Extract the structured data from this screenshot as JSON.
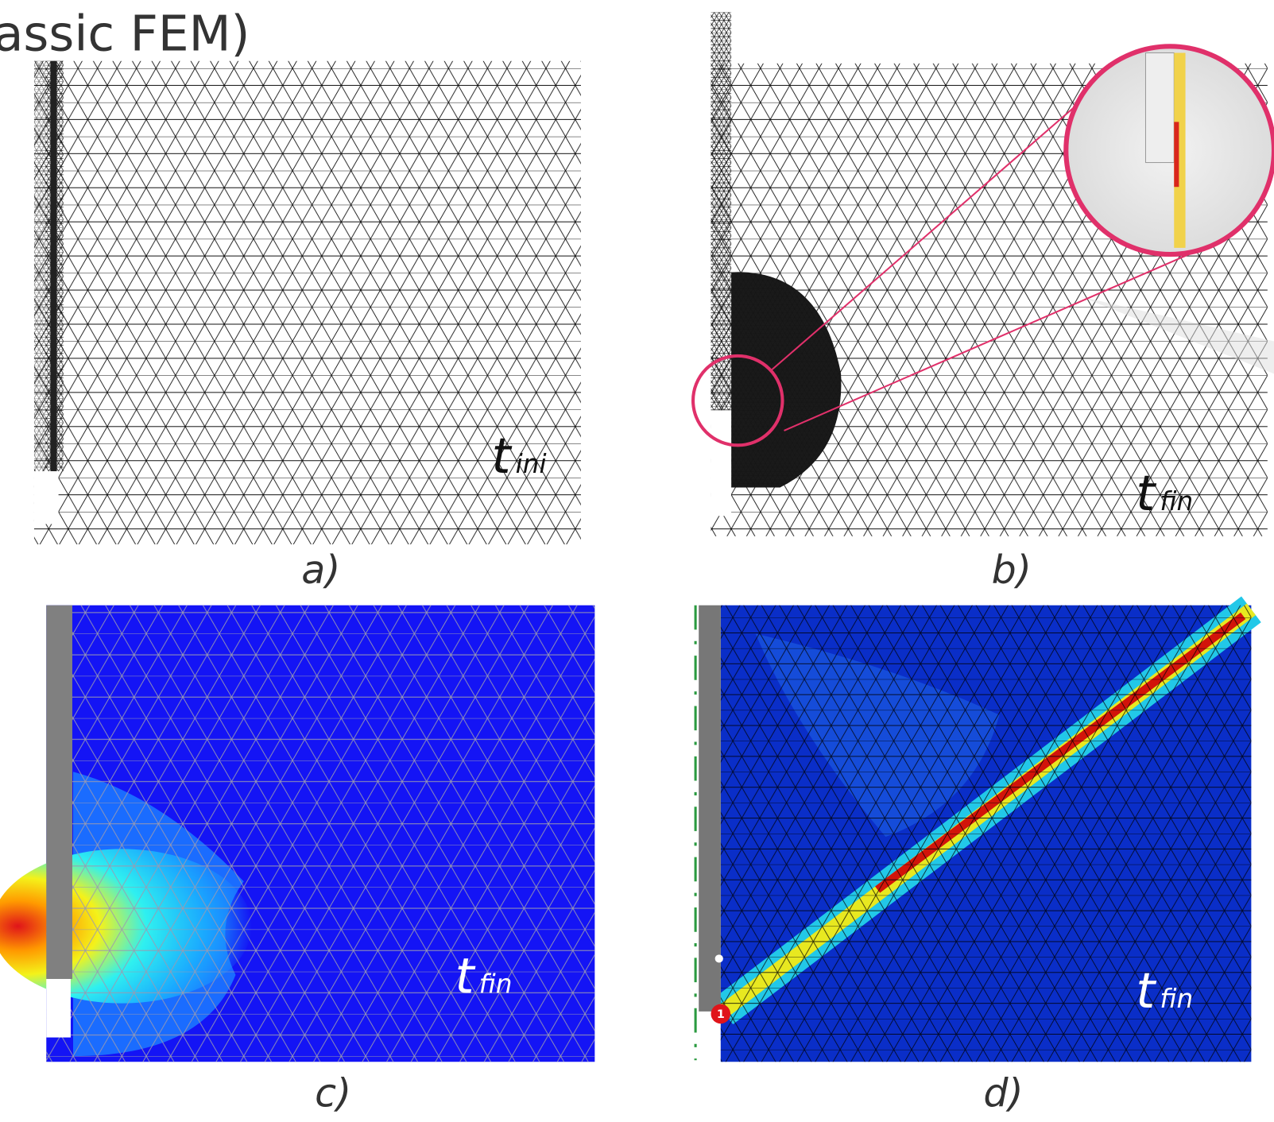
{
  "title": "assic FEM)",
  "panels": [
    {
      "label": "a)",
      "time": {
        "symbol": "t",
        "subscript": "ini"
      }
    },
    {
      "label": "b)",
      "time": {
        "symbol": "t",
        "subscript": "fin"
      }
    },
    {
      "label": "c)",
      "time": {
        "symbol": "t",
        "subscript": "fin"
      }
    },
    {
      "label": "d)",
      "time": {
        "symbol": "t",
        "subscript": "fin"
      },
      "marker": "1"
    }
  ]
}
